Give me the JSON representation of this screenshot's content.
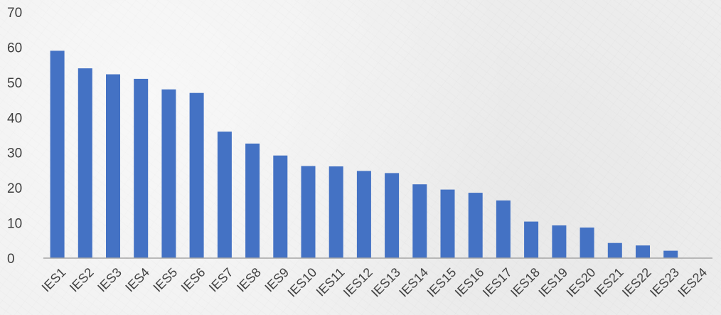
{
  "chart_data": {
    "type": "bar",
    "title": "",
    "xlabel": "",
    "ylabel": "",
    "ylim": [
      0,
      70
    ],
    "yticks": [
      0,
      10,
      20,
      30,
      40,
      50,
      60,
      70
    ],
    "grid": false,
    "legend": "none",
    "bar_color": "#4472c4",
    "categories": [
      "IES1",
      "IES2",
      "IES3",
      "IES4",
      "IES5",
      "IES6",
      "IES7",
      "IES8",
      "IES9",
      "IES10",
      "IES11",
      "IES12",
      "IES13",
      "IES14",
      "IES15",
      "IES16",
      "IES17",
      "IES18",
      "IES19",
      "IES20",
      "IES21",
      "IES22",
      "IES23",
      "IES24"
    ],
    "values": [
      59,
      54,
      52.3,
      51,
      48,
      47,
      36,
      32.6,
      29.2,
      26.2,
      26.1,
      24.8,
      24.2,
      21,
      19.5,
      18.6,
      16.4,
      10.4,
      9.3,
      8.7,
      4.3,
      3.6,
      2.1,
      0
    ]
  }
}
